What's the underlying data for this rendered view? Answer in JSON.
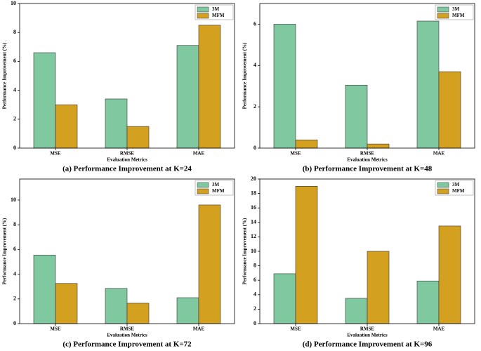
{
  "chart_data": [
    {
      "type": "bar",
      "title": "(a) Performance Improvement at K=24",
      "x_label": "Evaluation Metrics",
      "y_label": "Performance Improvement (%)",
      "categories": [
        "MSE",
        "RMSE",
        "MAE"
      ],
      "series": [
        {
          "name": "3M",
          "color": "#7fc8a0",
          "values": [
            6.6,
            3.4,
            7.1
          ]
        },
        {
          "name": "MFM",
          "color": "#d4a020",
          "values": [
            3.0,
            1.5,
            8.5
          ]
        }
      ],
      "ylim": [
        0,
        10
      ],
      "yticks": [
        0,
        2,
        4,
        6,
        8,
        10
      ],
      "legend": "upper right"
    },
    {
      "type": "bar",
      "title": "(b) Performance Improvement at K=48",
      "x_label": "Evaluation Metrics",
      "y_label": "Performance Improvement (%)",
      "categories": [
        "MSE",
        "RMSE",
        "MAE"
      ],
      "series": [
        {
          "name": "3M",
          "color": "#7fc8a0",
          "values": [
            6.0,
            3.05,
            6.15
          ]
        },
        {
          "name": "MFM",
          "color": "#d4a020",
          "values": [
            0.4,
            0.2,
            3.7
          ]
        }
      ],
      "ylim": [
        0,
        7
      ],
      "yticks": [
        0,
        2,
        4,
        6
      ],
      "legend": "upper right"
    },
    {
      "type": "bar",
      "title": "(c) Performance Improvement at K=72",
      "x_label": "Evaluation Metrics",
      "y_label": "Performance Improvement (%)",
      "categories": [
        "MSE",
        "RMSE",
        "MAE"
      ],
      "series": [
        {
          "name": "3M",
          "color": "#7fc8a0",
          "values": [
            5.55,
            2.85,
            2.1
          ]
        },
        {
          "name": "MFM",
          "color": "#d4a020",
          "values": [
            3.25,
            1.65,
            9.6
          ]
        }
      ],
      "ylim": [
        0,
        11.7
      ],
      "yticks": [
        0,
        2,
        4,
        6,
        8,
        10
      ],
      "legend": "upper right"
    },
    {
      "type": "bar",
      "title": "(d) Performance Improvement at K=96",
      "x_label": "Evaluation Metrics",
      "y_label": "Performance Improvement (%)",
      "categories": [
        "MSE",
        "RMSE",
        "MAE"
      ],
      "series": [
        {
          "name": "3M",
          "color": "#7fc8a0",
          "values": [
            6.9,
            3.5,
            5.9
          ]
        },
        {
          "name": "MFM",
          "color": "#d4a020",
          "values": [
            19.0,
            10.0,
            13.5
          ]
        }
      ],
      "ylim": [
        0,
        20
      ],
      "yticks": [
        0,
        2,
        4,
        6,
        8,
        10,
        12,
        14,
        16,
        18,
        20
      ],
      "legend": "upper right"
    }
  ]
}
